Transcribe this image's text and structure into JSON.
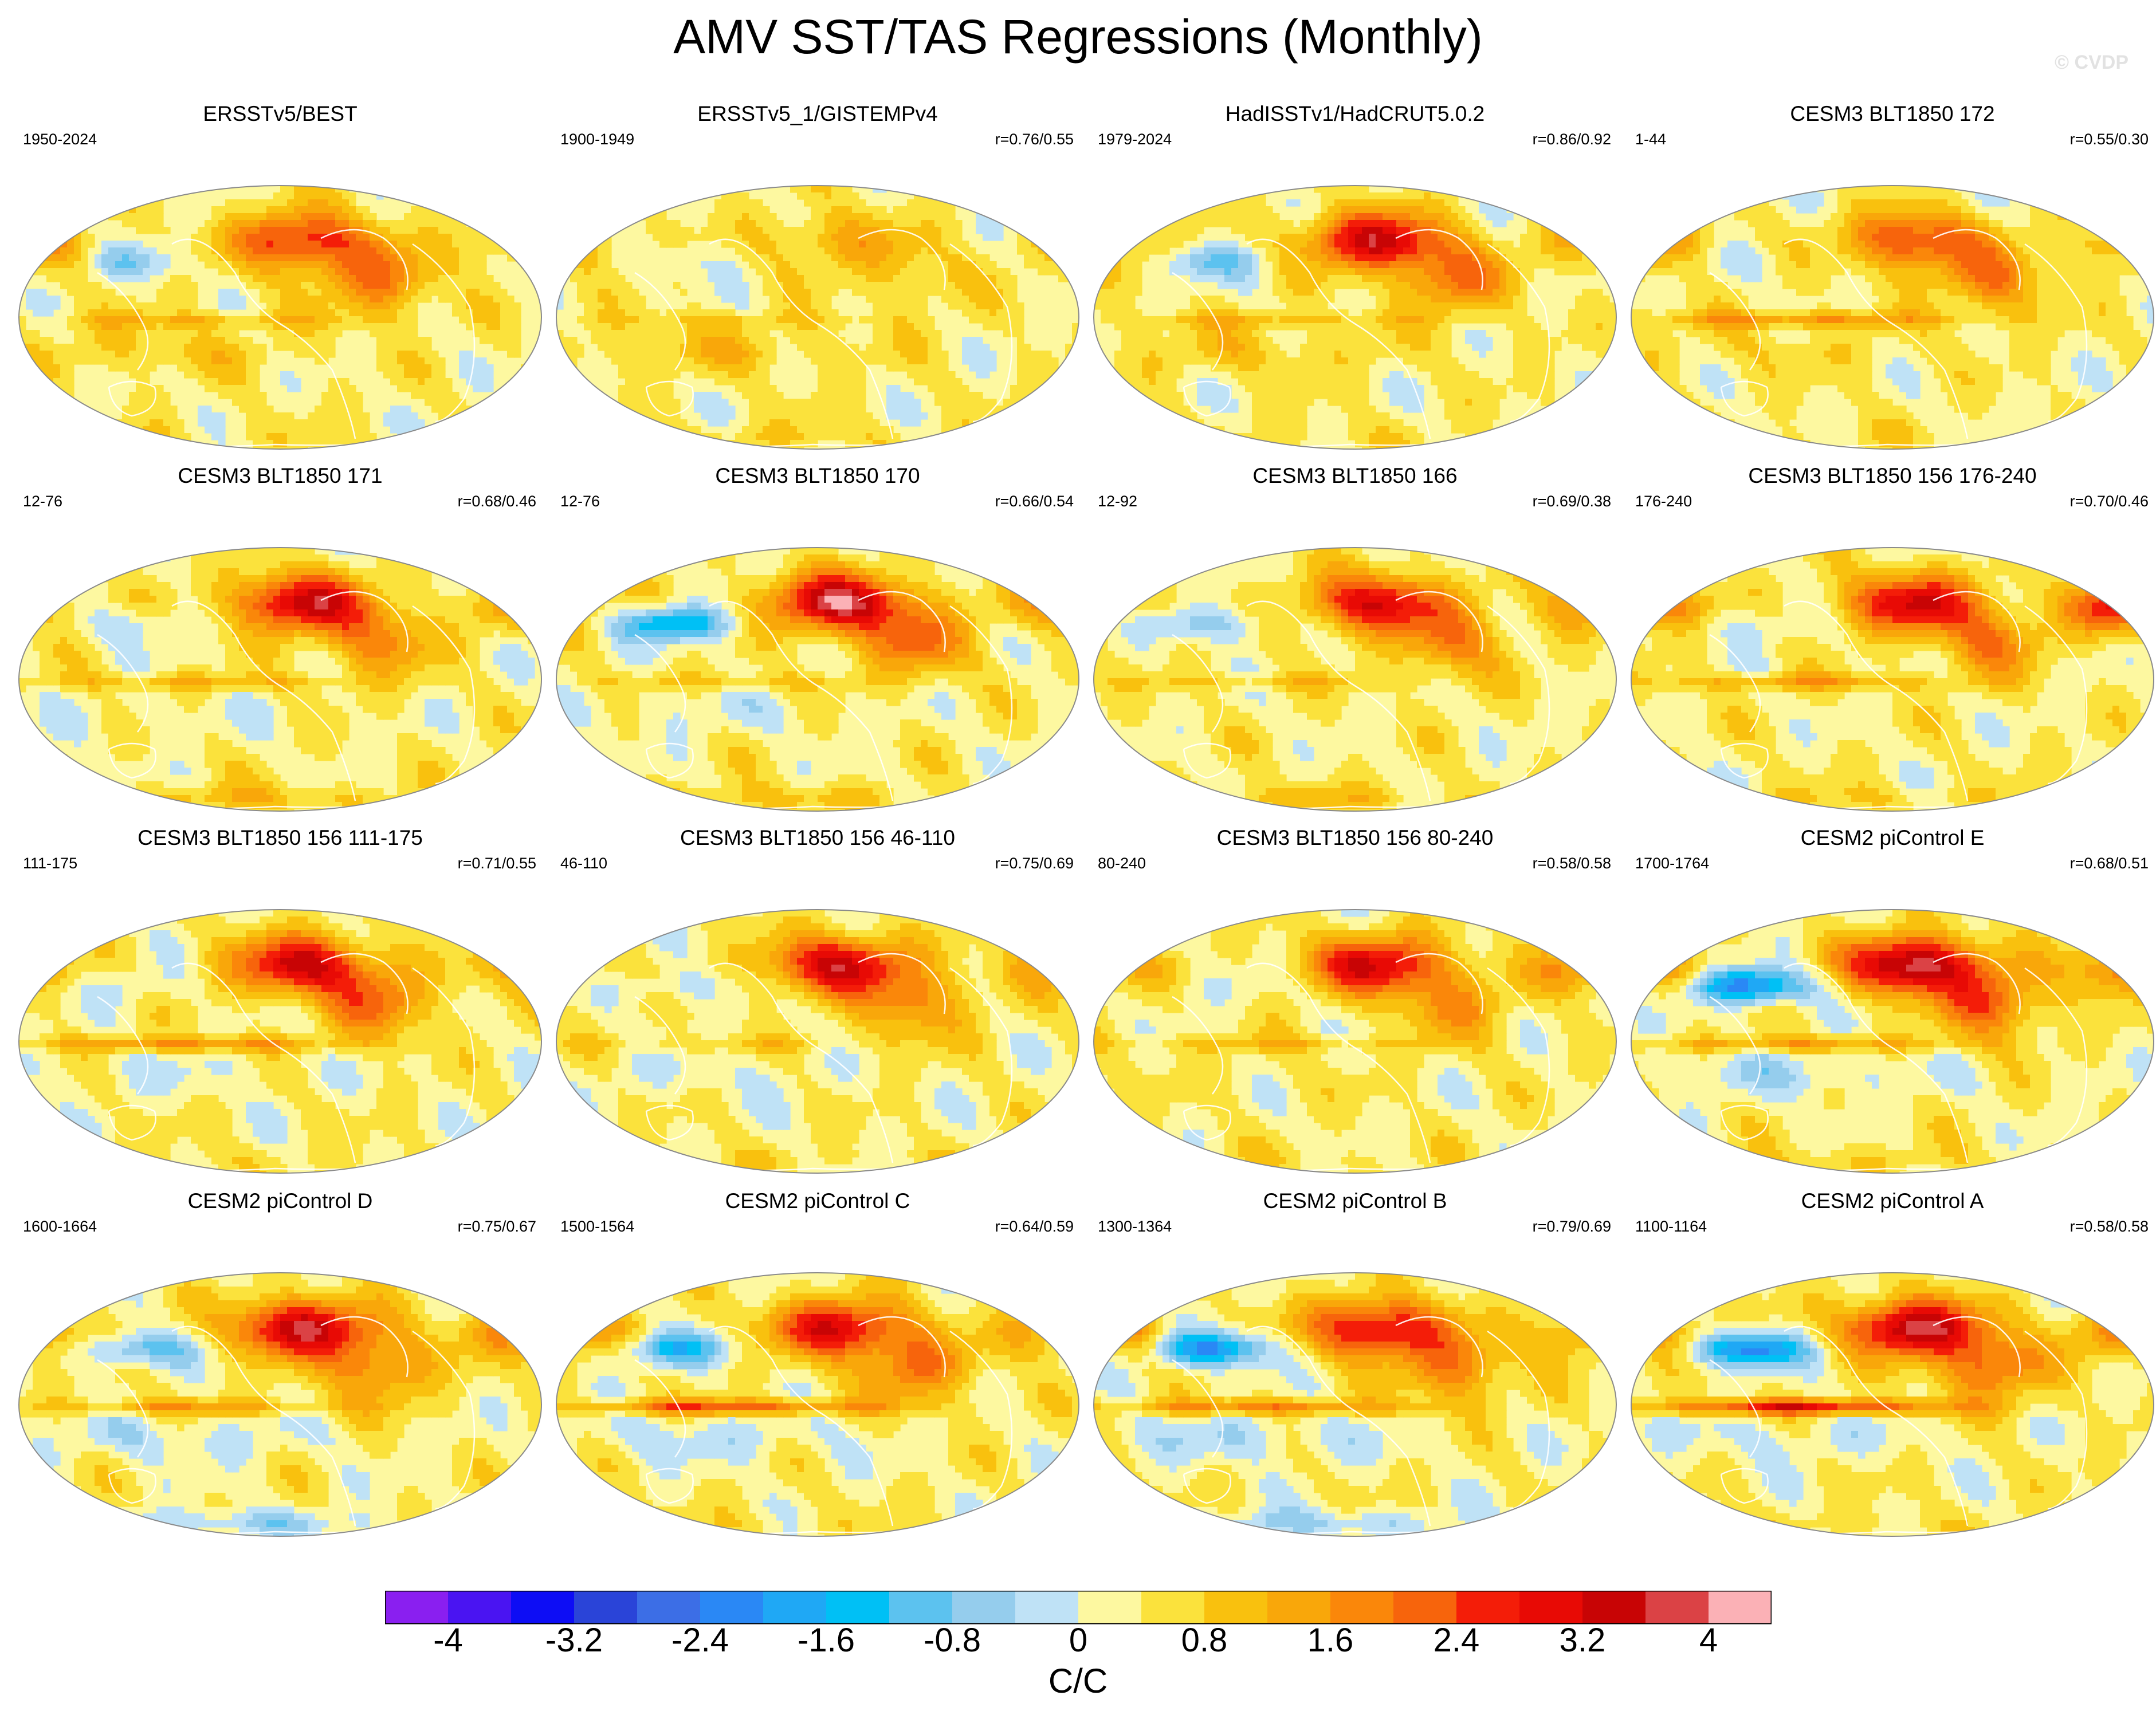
{
  "title": "AMV SST/TAS Regressions (Monthly)",
  "watermark": "© CVDP",
  "chart_data": {
    "type": "heatmap",
    "title": "AMV SST/TAS Regressions (Monthly)",
    "projection": "Robinson global map",
    "colorbar": {
      "label": "C/C",
      "levels": [
        -4.4,
        -4,
        -3.6,
        -3.2,
        -2.8,
        -2.4,
        -2,
        -1.6,
        -1.2,
        -0.8,
        -0.4,
        0,
        0.4,
        0.8,
        1.2,
        1.6,
        2,
        2.4,
        2.8,
        3.2,
        3.6,
        4,
        4.4
      ],
      "tick_labels": [
        "-4",
        "-3.2",
        "-2.4",
        "-1.6",
        "-0.8",
        "0",
        "0.8",
        "1.6",
        "2.4",
        "3.2",
        "4"
      ],
      "tick_values": [
        -4,
        -3.2,
        -2.4,
        -1.6,
        -0.8,
        0,
        0.8,
        1.6,
        2.4,
        3.2,
        4
      ],
      "colors": [
        "#8a1ff0",
        "#4a14f2",
        "#0d0df5",
        "#2a44d8",
        "#3c6ee6",
        "#2a88f5",
        "#1fa8f5",
        "#00c0f5",
        "#5cc2ef",
        "#95cded",
        "#bfe2f6",
        "#fdf8a0",
        "#fbe23c",
        "#f9c10e",
        "#f9a70a",
        "#fa870a",
        "#f7640c",
        "#f41d08",
        "#e80a05",
        "#c80405",
        "#db4245",
        "#fbb1b6"
      ]
    },
    "panels": [
      {
        "title": "ERSSTv5/BEST",
        "period": "1950-2024",
        "corr": "",
        "pattern": [
          2.5,
          -0.8,
          1.0,
          1.6,
          0.5,
          0.8,
          0.2,
          0.7
        ]
      },
      {
        "title": "ERSSTv5_1/GISTEMPv4",
        "period": "1900-1949",
        "corr": "r=0.76/0.55",
        "pattern": [
          1.0,
          -0.4,
          0.8,
          0.6,
          0.6,
          0.5,
          0.4,
          0.4
        ]
      },
      {
        "title": "HadISSTv1/HadCRUT5.0.2",
        "period": "1979-2024",
        "corr": "r=0.86/0.92",
        "pattern": [
          3.0,
          -1.0,
          0.6,
          1.6,
          0.5,
          0.7,
          0.2,
          0.7
        ]
      },
      {
        "title": "CESM3 BLT1850 172",
        "period": "1-44",
        "corr": "r=0.55/0.30",
        "pattern": [
          2.2,
          -0.3,
          1.2,
          1.4,
          0.3,
          1.3,
          0.2,
          0.8
        ]
      },
      {
        "title": "CESM3 BLT1850 171",
        "period": "12-76",
        "corr": "r=0.68/0.46",
        "pattern": [
          3.0,
          -0.6,
          0.6,
          1.4,
          -0.2,
          0.9,
          0.7,
          0.9
        ]
      },
      {
        "title": "CESM3 BLT1850 170",
        "period": "12-76",
        "corr": "r=0.66/0.54",
        "pattern": [
          3.4,
          -2.0,
          0.5,
          1.6,
          -0.3,
          0.6,
          0.6,
          1.0
        ]
      },
      {
        "title": "CESM3 BLT1850 166",
        "period": "12-92",
        "corr": "r=0.69/0.38",
        "pattern": [
          2.8,
          -1.0,
          0.4,
          1.4,
          0.0,
          0.6,
          0.6,
          1.0
        ]
      },
      {
        "title": "CESM3 BLT1850 156 176-240",
        "period": "176-240",
        "corr": "r=0.70/0.46",
        "pattern": [
          2.8,
          -0.5,
          1.6,
          1.4,
          0.0,
          1.1,
          0.4,
          2.4
        ]
      },
      {
        "title": "CESM3 BLT1850 156 111-175",
        "period": "111-175",
        "corr": "r=0.71/0.55",
        "pattern": [
          3.0,
          -0.4,
          0.6,
          1.6,
          -0.3,
          1.4,
          0.2,
          0.8
        ]
      },
      {
        "title": "CESM3 BLT1850 156 46-110",
        "period": "46-110",
        "corr": "r=0.75/0.69",
        "pattern": [
          3.0,
          -0.6,
          0.4,
          1.4,
          -0.3,
          0.5,
          0.2,
          0.8
        ]
      },
      {
        "title": "CESM3 BLT1850 156 80-240",
        "period": "80-240",
        "corr": "r=0.58/0.58",
        "pattern": [
          2.8,
          -0.3,
          0.8,
          1.2,
          0.1,
          0.7,
          0.2,
          1.2
        ]
      },
      {
        "title": "CESM2 piControl E",
        "period": "1700-1764",
        "corr": "r=0.68/0.51",
        "pattern": [
          3.6,
          -2.6,
          1.0,
          1.8,
          -0.6,
          1.2,
          0.4,
          1.6
        ]
      },
      {
        "title": "CESM2 piControl D",
        "period": "1600-1664",
        "corr": "r=0.75/0.67",
        "pattern": [
          3.2,
          -1.4,
          1.0,
          1.6,
          -0.5,
          1.2,
          -0.8,
          1.2
        ]
      },
      {
        "title": "CESM2 piControl C",
        "period": "1500-1564",
        "corr": "r=0.64/0.59",
        "pattern": [
          2.8,
          -1.6,
          1.0,
          1.6,
          -0.5,
          2.0,
          0.2,
          1.0
        ]
      },
      {
        "title": "CESM2 piControl B",
        "period": "1300-1364",
        "corr": "r=0.79/0.69",
        "pattern": [
          2.8,
          -2.4,
          1.2,
          1.6,
          -0.6,
          1.6,
          -0.8,
          1.2
        ]
      },
      {
        "title": "CESM2 piControl A",
        "period": "1100-1164",
        "corr": "r=0.58/0.58",
        "pattern": [
          3.4,
          -2.6,
          1.2,
          1.8,
          -0.4,
          2.6,
          0.2,
          1.4
        ]
      }
    ]
  }
}
